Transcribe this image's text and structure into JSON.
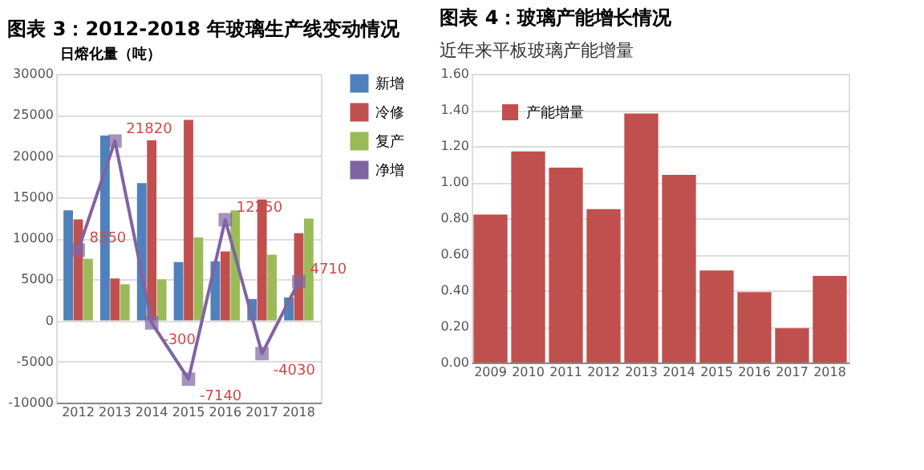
{
  "chart_data": [
    {
      "type": "bar",
      "title": "图表 3：2012-2018 年玻璃生产线变动情况",
      "ylabel": "日熔化量（吨）",
      "categories": [
        "2012",
        "2013",
        "2014",
        "2015",
        "2016",
        "2017",
        "2018"
      ],
      "series": [
        {
          "name": "新增",
          "color": "#4f81bd",
          "values": [
            13400,
            22500,
            16700,
            7100,
            7200,
            2600,
            2800
          ]
        },
        {
          "name": "冷修",
          "color": "#c0504d",
          "values": [
            12300,
            5100,
            21900,
            24400,
            8400,
            14700,
            10600
          ]
        },
        {
          "name": "复产",
          "color": "#9bbb59",
          "values": [
            7500,
            4400,
            5000,
            10100,
            13400,
            8000,
            12400
          ]
        },
        {
          "name": "净增",
          "color": "#8064a2",
          "type": "line",
          "marker": "square",
          "values": [
            8550,
            21820,
            -300,
            -7140,
            12250,
            -4030,
            4710
          ],
          "value_labels": [
            "8550",
            "21820",
            "-300",
            "-7140",
            "12250",
            "-4030",
            "4710"
          ]
        }
      ],
      "ylim": [
        -10000,
        30000
      ],
      "yticks": [
        -10000,
        -5000,
        0,
        5000,
        10000,
        15000,
        20000,
        25000,
        30000
      ],
      "grid": "y",
      "legend": "right"
    },
    {
      "type": "bar",
      "title": "图表 4：玻璃产能增长情况",
      "subtitle": "近年来平板玻璃产能增量",
      "categories": [
        "2009",
        "2010",
        "2011",
        "2012",
        "2013",
        "2014",
        "2015",
        "2016",
        "2017",
        "2018"
      ],
      "series": [
        {
          "name": "产能增量",
          "color": "#c0504d",
          "values": [
            0.82,
            1.17,
            1.08,
            0.85,
            1.38,
            1.04,
            0.51,
            0.39,
            0.19,
            0.48
          ]
        }
      ],
      "ylim": [
        0,
        1.6
      ],
      "yticks": [
        {
          "value": 0,
          "label": "0.00"
        },
        {
          "value": 0.2,
          "label": "0.20"
        },
        {
          "value": 0.4,
          "label": "0.40"
        },
        {
          "value": 0.6,
          "label": "0.60"
        },
        {
          "value": 0.8,
          "label": "0.80"
        },
        {
          "value": 1,
          "label": "1.00"
        },
        {
          "value": 1.2,
          "label": "1.20"
        },
        {
          "value": 1.4,
          "label": "1.40"
        },
        {
          "value": 1.6,
          "label": "1.60"
        }
      ],
      "grid": "y",
      "legend": "top left"
    }
  ]
}
